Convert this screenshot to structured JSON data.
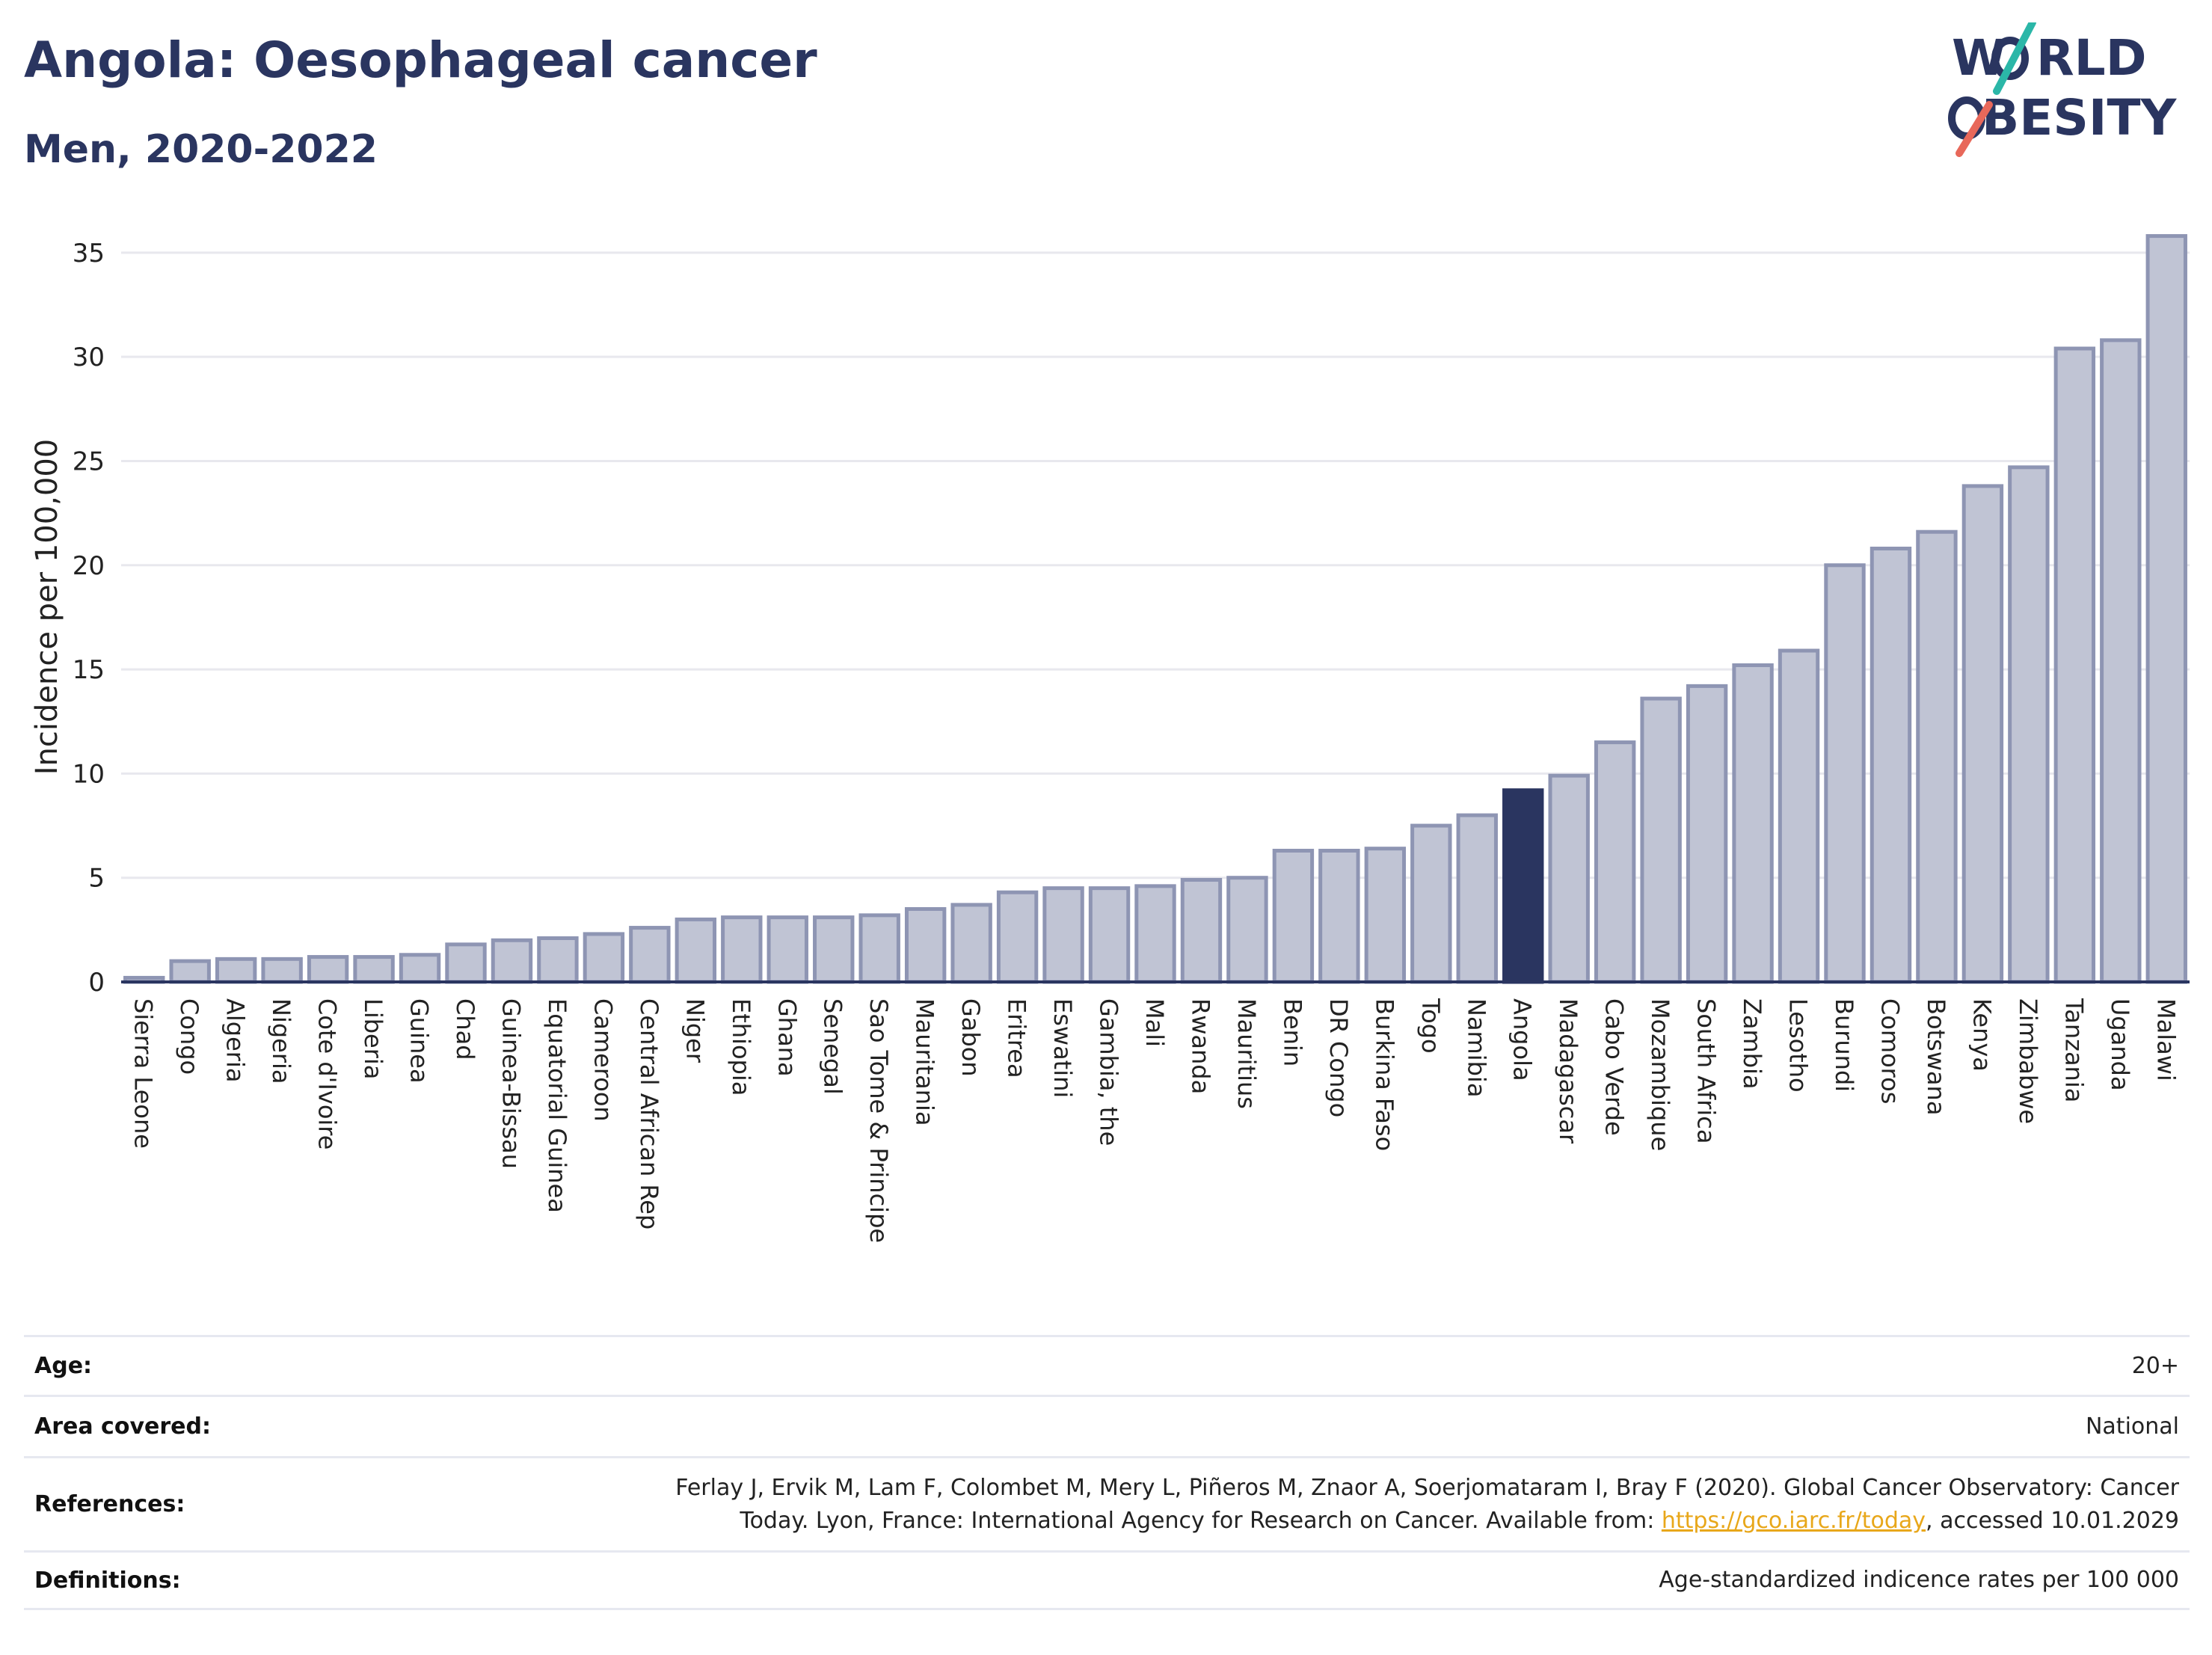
{
  "header": {
    "title": "Angola: Oesophageal cancer",
    "subtitle": "Men, 2020-2022"
  },
  "logo": {
    "line1": "W",
    "line1_rest": "RLD",
    "line2": "BESITY",
    "accent1": "#2bb7a8",
    "accent2": "#e8685a"
  },
  "colors": {
    "bar": "#c0c4d4",
    "bar_stroke": "#8e95b3",
    "highlight": "#2a3560",
    "grid": "#e8e8ee"
  },
  "chart_data": {
    "type": "bar",
    "ylabel": "Incidence per 100,000",
    "xlabel": "",
    "ylim": [
      0,
      36
    ],
    "yticks": [
      0,
      5,
      10,
      15,
      20,
      25,
      30,
      35
    ],
    "highlight": "Angola",
    "categories": [
      "Sierra Leone",
      "Congo",
      "Algeria",
      "Nigeria",
      "Cote d'Ivoire",
      "Liberia",
      "Guinea",
      "Chad",
      "Guinea-Bissau",
      "Equatorial Guinea",
      "Cameroon",
      "Central African Rep",
      "Niger",
      "Ethiopia",
      "Ghana",
      "Senegal",
      "Sao Tome & Principe",
      "Mauritania",
      "Gabon",
      "Eritrea",
      "Eswatini",
      "Gambia, the",
      "Mali",
      "Rwanda",
      "Mauritius",
      "Benin",
      "DR Congo",
      "Burkina Faso",
      "Togo",
      "Namibia",
      "Angola",
      "Madagascar",
      "Cabo Verde",
      "Mozambique",
      "South Africa",
      "Zambia",
      "Lesotho",
      "Burundi",
      "Comoros",
      "Botswana",
      "Kenya",
      "Zimbabwe",
      "Tanzania",
      "Uganda",
      "Malawi"
    ],
    "values": [
      0.2,
      1.0,
      1.1,
      1.1,
      1.2,
      1.2,
      1.3,
      1.8,
      2.0,
      2.1,
      2.3,
      2.6,
      3.0,
      3.1,
      3.1,
      3.1,
      3.2,
      3.5,
      3.7,
      4.3,
      4.5,
      4.5,
      4.6,
      4.9,
      5.0,
      6.3,
      6.3,
      6.4,
      7.5,
      8.0,
      9.2,
      9.9,
      11.5,
      13.6,
      14.2,
      15.2,
      15.9,
      20.0,
      20.8,
      21.6,
      23.8,
      24.7,
      30.4,
      30.8,
      35.8
    ]
  },
  "info": {
    "age_label": "Age:",
    "age_value": "20+",
    "area_label": "Area covered:",
    "area_value": "National",
    "ref_label": "References:",
    "ref_text_1": "Ferlay J, Ervik M, Lam F, Colombet M, Mery L, Piñeros M, Znaor A, Soerjomataram I, Bray F (2020). Global Cancer Observatory: Cancer",
    "ref_text_2": "Today. Lyon, France: International Agency for Research on Cancer. Available from: ",
    "ref_link": "https://gco.iarc.fr/today",
    "ref_text_3": ", accessed 10.01.2029",
    "def_label": "Definitions:",
    "def_value": "Age-standardized indicence rates per 100 000"
  }
}
